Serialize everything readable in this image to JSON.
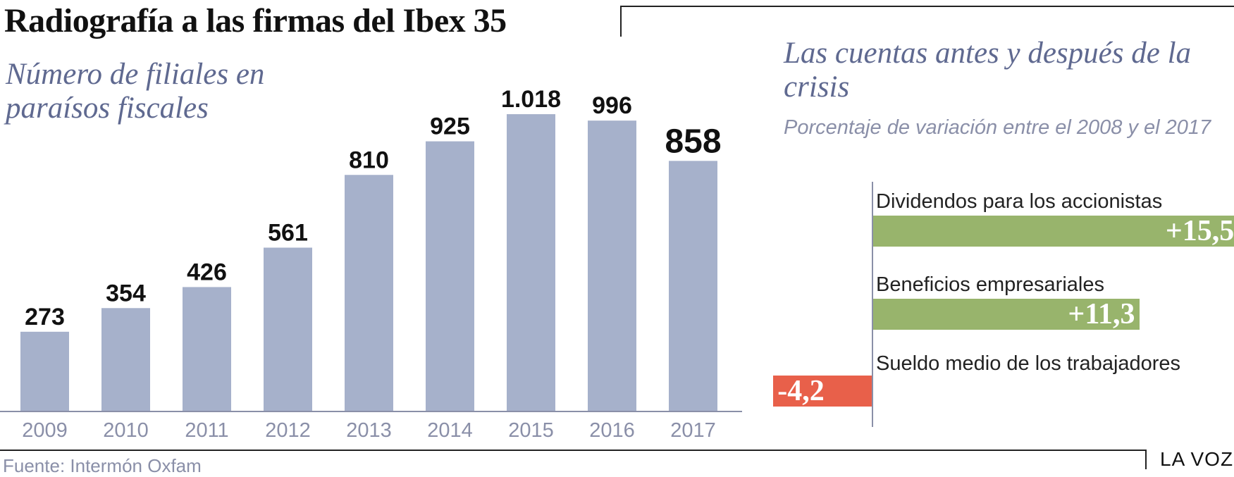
{
  "title": "Radiografía a las firmas del Ibex 35",
  "source": "Fuente: Intermón Oxfam",
  "brand": "LA VOZ",
  "colors": {
    "bar": "#a6b1cb",
    "positive": "#98b46c",
    "negative": "#e8604a",
    "axis": "#8a8fa8",
    "subtitle": "#5f6990"
  },
  "chart_data": [
    {
      "type": "bar",
      "title": "Número de filiales en paraísos fiscales",
      "categories": [
        "2009",
        "2010",
        "2011",
        "2012",
        "2013",
        "2014",
        "2015",
        "2016",
        "2017"
      ],
      "values": [
        273,
        354,
        426,
        561,
        810,
        925,
        1018,
        996,
        858
      ],
      "value_labels": [
        "273",
        "354",
        "426",
        "561",
        "810",
        "925",
        "1.018",
        "996",
        "858"
      ],
      "highlight_last": true
    },
    {
      "type": "bar",
      "orientation": "horizontal",
      "title": "Las cuentas antes y después de la crisis",
      "subtitle": "Porcentaje de variación entre el 2008 y el 2017",
      "categories": [
        "Dividendos para los accionistas",
        "Beneficios empresariales",
        "Sueldo medio de los trabajadores"
      ],
      "values": [
        15.5,
        11.3,
        -4.2
      ],
      "value_labels": [
        "+15,5",
        "+11,3",
        "-4,2"
      ]
    }
  ]
}
